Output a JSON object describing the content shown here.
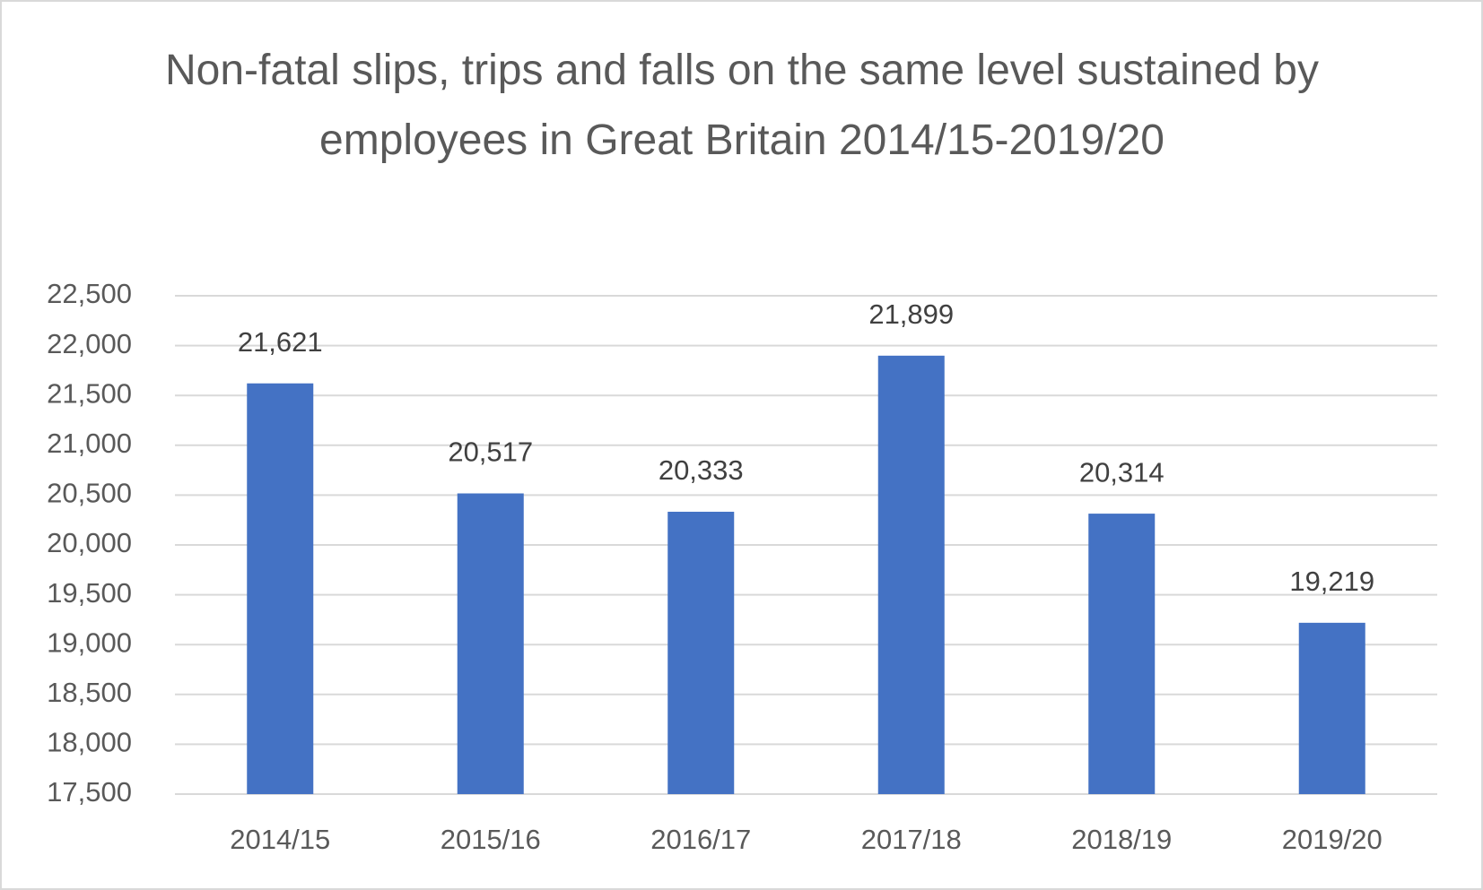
{
  "chart_data": {
    "type": "bar",
    "title": "Non-fatal slips, trips and falls on the same level sustained by employees in Great Britain 2014/15-2019/20",
    "categories": [
      "2014/15",
      "2015/16",
      "2016/17",
      "2017/18",
      "2018/19",
      "2019/20"
    ],
    "values": [
      21621,
      20517,
      20333,
      21899,
      20314,
      19219
    ],
    "value_labels": [
      "21,621",
      "20,517",
      "20,333",
      "21,899",
      "20,314",
      "19,219"
    ],
    "color": "#4472c4",
    "ylim": [
      17500,
      22500
    ],
    "yticks": [
      {
        "value": 17500,
        "label": "17,500"
      },
      {
        "value": 18000,
        "label": "18,000"
      },
      {
        "value": 18500,
        "label": "18,500"
      },
      {
        "value": 19000,
        "label": "19,000"
      },
      {
        "value": 19500,
        "label": "19,500"
      },
      {
        "value": 20000,
        "label": "20,000"
      },
      {
        "value": 20500,
        "label": "20,500"
      },
      {
        "value": 21000,
        "label": "21,000"
      },
      {
        "value": 21500,
        "label": "21,500"
      },
      {
        "value": 22000,
        "label": "22,000"
      },
      {
        "value": 22500,
        "label": "22,500"
      }
    ],
    "grid": true
  }
}
